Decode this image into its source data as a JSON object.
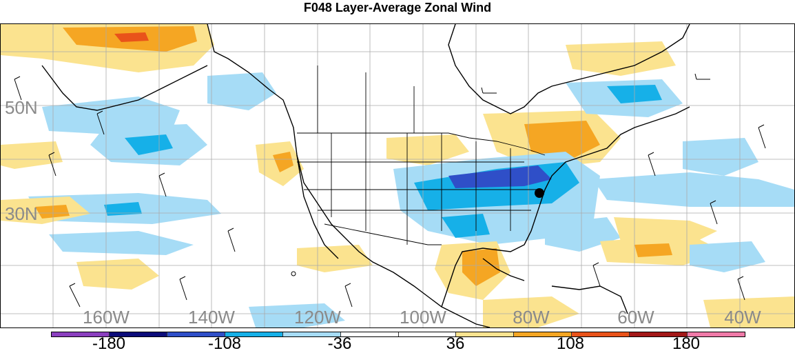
{
  "title": "F048 Layer-Average Zonal Wind",
  "lat_labels": [
    "50N",
    "30N"
  ],
  "lon_labels": [
    "160W",
    "140W",
    "120W",
    "100W",
    "80W",
    "60W",
    "40W"
  ],
  "colorbar": {
    "colors": [
      "#8b3fbf",
      "#0c0c7a",
      "#2f4fc8",
      "#16b0e8",
      "#a6dcf6",
      "#ffffff",
      "#ffffff",
      "#fbe38f",
      "#f5a623",
      "#e9531a",
      "#a31818",
      "#ef7aa8"
    ],
    "labels": [
      "-180",
      "-108",
      "-36",
      "36",
      "108",
      "180"
    ]
  },
  "legend_colors": {
    "strong_negative": "#2f4fc8",
    "negative": "#16b0e8",
    "weak_negative": "#a6dcf6",
    "weak_positive": "#fbe38f",
    "positive": "#f5a623",
    "strong_positive": "#e9531a"
  },
  "markers": [
    {
      "name": "station-marker",
      "icon": "filled-circle"
    }
  ]
}
